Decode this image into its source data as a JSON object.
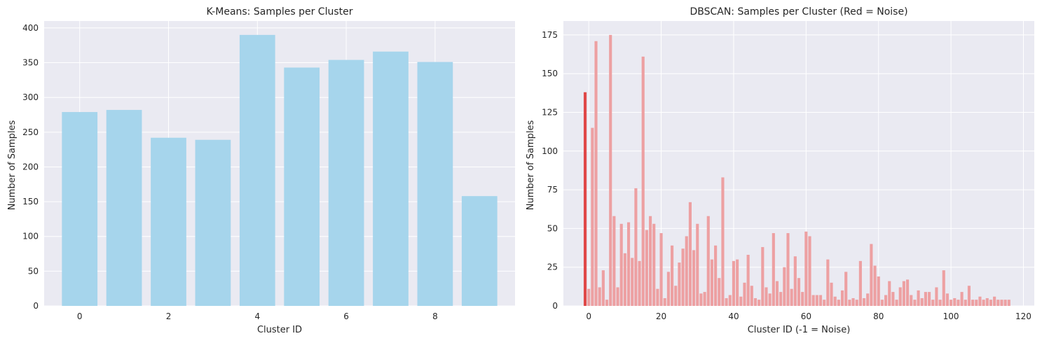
{
  "colors": {
    "background": "#eaeaf2",
    "grid": "#ffffff",
    "kmeans_bar": "#a6d5ec",
    "dbscan_bar": "#eda0a2",
    "noise_bar": "#e04848"
  },
  "chart_data": [
    {
      "type": "bar",
      "title": "K-Means: Samples per Cluster",
      "xlabel": "Cluster ID",
      "ylabel": "Number of Samples",
      "grid": true,
      "xlim": [
        -0.8,
        9.8
      ],
      "ylim": [
        0,
        410
      ],
      "xticks": [
        0,
        2,
        4,
        6,
        8
      ],
      "yticks": [
        0,
        50,
        100,
        150,
        200,
        250,
        300,
        350,
        400
      ],
      "categories": [
        0,
        1,
        2,
        3,
        4,
        5,
        6,
        7,
        8,
        9
      ],
      "values": [
        279,
        282,
        242,
        239,
        390,
        343,
        354,
        366,
        351,
        158
      ]
    },
    {
      "type": "bar",
      "title": "DBSCAN: Samples per Cluster (Red = Noise)",
      "xlabel": "Cluster ID (-1 = Noise)",
      "ylabel": "Number of Samples",
      "grid": true,
      "xlim": [
        -7,
        123
      ],
      "ylim": [
        0,
        184
      ],
      "xticks": [
        0,
        20,
        40,
        60,
        80,
        100,
        120
      ],
      "yticks": [
        0,
        25,
        50,
        75,
        100,
        125,
        150,
        175
      ],
      "noise_category": -1,
      "categories": [
        -1,
        0,
        1,
        2,
        3,
        4,
        5,
        6,
        7,
        8,
        9,
        10,
        11,
        12,
        13,
        14,
        15,
        16,
        17,
        18,
        19,
        20,
        21,
        22,
        23,
        24,
        25,
        26,
        27,
        28,
        29,
        30,
        31,
        32,
        33,
        34,
        35,
        36,
        37,
        38,
        39,
        40,
        41,
        42,
        43,
        44,
        45,
        46,
        47,
        48,
        49,
        50,
        51,
        52,
        53,
        54,
        55,
        56,
        57,
        58,
        59,
        60,
        61,
        62,
        63,
        64,
        65,
        66,
        67,
        68,
        69,
        70,
        71,
        72,
        73,
        74,
        75,
        76,
        77,
        78,
        79,
        80,
        81,
        82,
        83,
        84,
        85,
        86,
        87,
        88,
        89,
        90,
        91,
        92,
        93,
        94,
        95,
        96,
        97,
        98,
        99,
        100,
        101,
        102,
        103,
        104,
        105,
        106,
        107,
        108,
        109,
        110,
        111,
        112,
        113,
        114,
        115,
        116
      ],
      "values": [
        138,
        11,
        115,
        171,
        12,
        23,
        4,
        175,
        58,
        12,
        53,
        34,
        54,
        31,
        76,
        29,
        161,
        49,
        58,
        53,
        11,
        47,
        5,
        22,
        39,
        13,
        28,
        37,
        45,
        67,
        36,
        53,
        8,
        9,
        58,
        30,
        39,
        18,
        83,
        5,
        7,
        29,
        30,
        6,
        15,
        33,
        13,
        5,
        4,
        38,
        12,
        8,
        47,
        16,
        9,
        25,
        47,
        11,
        32,
        18,
        9,
        48,
        45,
        7,
        7,
        7,
        4,
        30,
        15,
        6,
        4,
        10,
        22,
        4,
        5,
        4,
        29,
        5,
        8,
        40,
        26,
        19,
        4,
        7,
        16,
        9,
        4,
        12,
        16,
        17,
        7,
        4,
        10,
        5,
        9,
        9,
        4,
        12,
        4,
        23,
        8,
        4,
        5,
        4,
        9,
        4,
        13,
        4,
        4,
        6,
        4,
        5,
        4,
        6,
        4,
        4,
        4,
        4
      ]
    }
  ]
}
